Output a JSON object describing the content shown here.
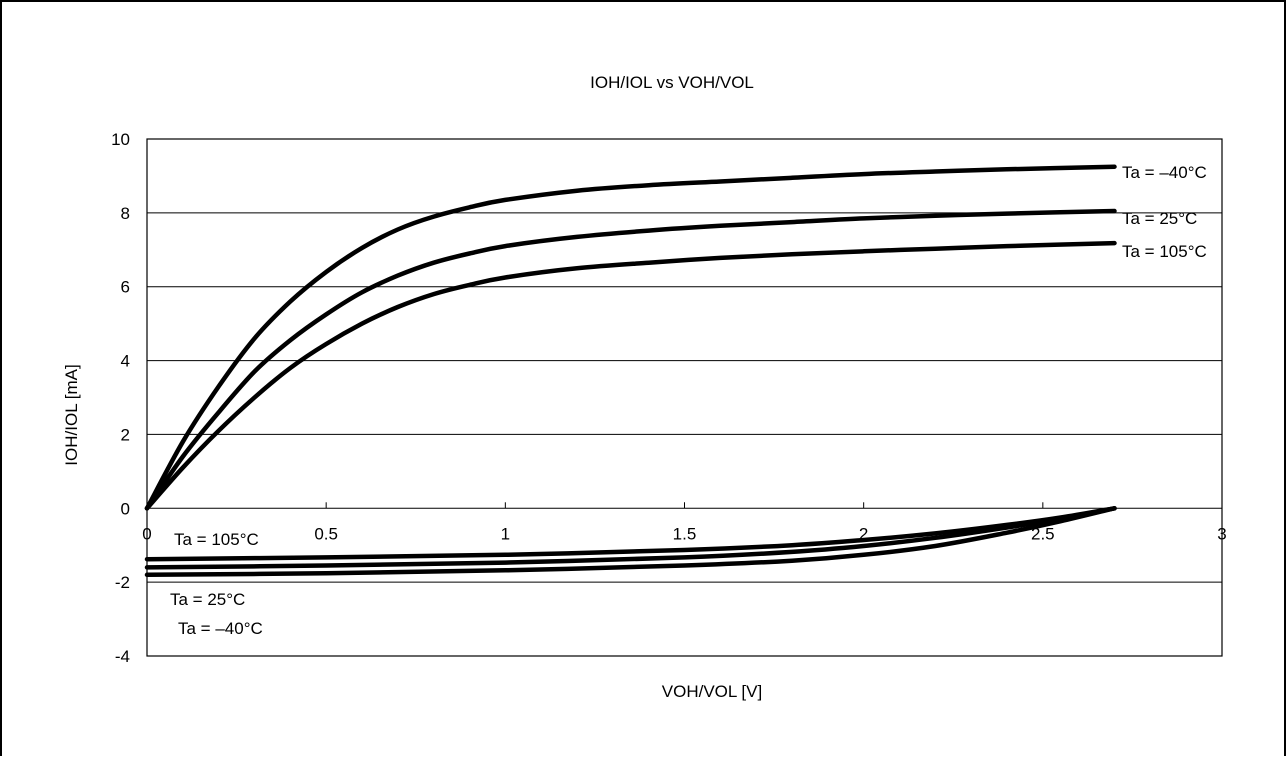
{
  "chart_data": {
    "type": "line",
    "title": "IOH/IOL vs VOH/VOL",
    "xlabel": "VOH/VOL [V]",
    "ylabel": "IOH/IOL [mA]",
    "xlim": [
      0,
      3
    ],
    "ylim": [
      -4,
      10
    ],
    "x_ticks": [
      0,
      0.5,
      1,
      1.5,
      2,
      2.5,
      3
    ],
    "x_tick_labels": [
      "0",
      "0.5",
      "1",
      "1.5",
      "2",
      "2.5",
      "3"
    ],
    "y_ticks": [
      -4,
      -2,
      0,
      2,
      4,
      6,
      8,
      10
    ],
    "y_tick_labels": [
      "-4",
      "-2",
      "0",
      "2",
      "4",
      "6",
      "8",
      "10"
    ],
    "grid": "horizontal",
    "colors": {
      "line": "#000000",
      "grid": "#000000",
      "background": "#ffffff"
    },
    "series": [
      {
        "name": "Ta = –40°C",
        "group": "IOH",
        "x": [
          0,
          0.1,
          0.2,
          0.3,
          0.4,
          0.5,
          0.6,
          0.7,
          0.8,
          0.9,
          1.0,
          1.2,
          1.4,
          1.6,
          1.8,
          2.0,
          2.2,
          2.4,
          2.7
        ],
        "y": [
          0,
          1.8,
          3.3,
          4.6,
          5.6,
          6.4,
          7.05,
          7.55,
          7.9,
          8.15,
          8.35,
          8.6,
          8.75,
          8.85,
          8.95,
          9.05,
          9.12,
          9.18,
          9.25
        ]
      },
      {
        "name": "Ta = 25°C",
        "group": "IOH",
        "x": [
          0,
          0.1,
          0.2,
          0.3,
          0.4,
          0.5,
          0.6,
          0.7,
          0.8,
          0.9,
          1.0,
          1.2,
          1.4,
          1.6,
          1.8,
          2.0,
          2.2,
          2.4,
          2.7
        ],
        "y": [
          0,
          1.4,
          2.6,
          3.7,
          4.55,
          5.25,
          5.85,
          6.3,
          6.65,
          6.9,
          7.1,
          7.35,
          7.52,
          7.65,
          7.75,
          7.85,
          7.92,
          7.98,
          8.05
        ]
      },
      {
        "name": "Ta = 105°C",
        "group": "IOH",
        "x": [
          0,
          0.1,
          0.2,
          0.3,
          0.4,
          0.5,
          0.6,
          0.7,
          0.8,
          0.9,
          1.0,
          1.2,
          1.4,
          1.6,
          1.8,
          2.0,
          2.2,
          2.4,
          2.7
        ],
        "y": [
          0,
          1.1,
          2.1,
          3.0,
          3.8,
          4.45,
          5.0,
          5.45,
          5.8,
          6.05,
          6.25,
          6.5,
          6.65,
          6.78,
          6.88,
          6.96,
          7.03,
          7.1,
          7.18
        ]
      },
      {
        "name": "Ta = 105°C",
        "group": "IOL",
        "x": [
          0,
          0.5,
          1.0,
          1.5,
          1.8,
          2.0,
          2.2,
          2.4,
          2.55,
          2.7
        ],
        "y": [
          -1.38,
          -1.33,
          -1.26,
          -1.13,
          -1.0,
          -0.86,
          -0.68,
          -0.45,
          -0.25,
          0
        ]
      },
      {
        "name": "Ta = 25°C",
        "group": "IOL",
        "x": [
          0,
          0.5,
          1.0,
          1.5,
          1.8,
          2.0,
          2.2,
          2.4,
          2.55,
          2.7
        ],
        "y": [
          -1.6,
          -1.55,
          -1.47,
          -1.33,
          -1.18,
          -1.02,
          -0.8,
          -0.52,
          -0.28,
          0
        ]
      },
      {
        "name": "Ta = –40°C",
        "group": "IOL",
        "x": [
          0,
          0.5,
          1.0,
          1.5,
          1.8,
          2.0,
          2.2,
          2.4,
          2.55,
          2.7
        ],
        "y": [
          -1.8,
          -1.76,
          -1.68,
          -1.55,
          -1.42,
          -1.26,
          -1.02,
          -0.66,
          -0.35,
          0
        ]
      }
    ]
  }
}
